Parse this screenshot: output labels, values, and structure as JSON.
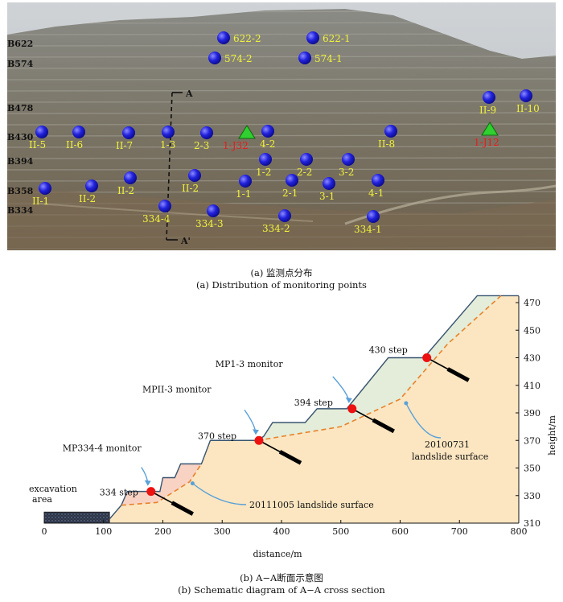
{
  "figure_a": {
    "caption_cn": "(a) 监测点分布",
    "caption_en": "(a) Distribution of monitoring points",
    "bench_labels": [
      "B622",
      "B574",
      "B478",
      "B430",
      "B394",
      "B358",
      "B334"
    ],
    "section_line": {
      "top_label": "A",
      "bottom_label": "A'"
    },
    "points": [
      {
        "label": "622-2",
        "kind": "point",
        "color": "blue"
      },
      {
        "label": "622-1",
        "kind": "point",
        "color": "blue"
      },
      {
        "label": "574-2",
        "kind": "point",
        "color": "blue"
      },
      {
        "label": "574-1",
        "kind": "point",
        "color": "blue"
      },
      {
        "label": "II-9",
        "kind": "point",
        "color": "blue"
      },
      {
        "label": "II-10",
        "kind": "point",
        "color": "blue"
      },
      {
        "label": "II-5",
        "kind": "point",
        "color": "blue"
      },
      {
        "label": "II-6",
        "kind": "point",
        "color": "blue"
      },
      {
        "label": "II-7",
        "kind": "point",
        "color": "blue"
      },
      {
        "label": "1-3",
        "kind": "point",
        "color": "blue"
      },
      {
        "label": "2-3",
        "kind": "point",
        "color": "blue"
      },
      {
        "label": "1-J32",
        "kind": "station",
        "color": "green",
        "label_color": "red"
      },
      {
        "label": "4-2",
        "kind": "point",
        "color": "blue"
      },
      {
        "label": "II-8",
        "kind": "point",
        "color": "blue"
      },
      {
        "label": "1-J12",
        "kind": "station",
        "color": "green",
        "label_color": "red"
      },
      {
        "label": "1-2",
        "kind": "point",
        "color": "blue"
      },
      {
        "label": "2-2",
        "kind": "point",
        "color": "blue"
      },
      {
        "label": "3-2",
        "kind": "point",
        "color": "blue"
      },
      {
        "label": "II-1",
        "kind": "point",
        "color": "blue"
      },
      {
        "label": "II-2",
        "kind": "point",
        "color": "blue"
      },
      {
        "label": "II-2",
        "kind": "point",
        "color": "blue"
      },
      {
        "label": "II-2",
        "kind": "point",
        "color": "blue"
      },
      {
        "label": "1-1",
        "kind": "point",
        "color": "blue"
      },
      {
        "label": "2-1",
        "kind": "point",
        "color": "blue"
      },
      {
        "label": "3-1",
        "kind": "point",
        "color": "blue"
      },
      {
        "label": "4-1",
        "kind": "point",
        "color": "blue"
      },
      {
        "label": "334-4",
        "kind": "point",
        "color": "blue"
      },
      {
        "label": "334-3",
        "kind": "point",
        "color": "blue"
      },
      {
        "label": "334-2",
        "kind": "point",
        "color": "blue"
      },
      {
        "label": "334-1",
        "kind": "point",
        "color": "blue"
      }
    ]
  },
  "figure_b": {
    "caption_cn": "(b) A−A断面示意图",
    "caption_en": "(b) Schematic diagram of A−A cross section",
    "chart_data": {
      "type": "diagram",
      "xlabel": "distance/m",
      "ylabel": "height/m",
      "xlim": [
        0,
        800
      ],
      "ylim": [
        310,
        470
      ],
      "xticks": [
        0,
        100,
        200,
        300,
        400,
        500,
        600,
        700,
        800
      ],
      "yticks": [
        310,
        330,
        350,
        370,
        390,
        410,
        430,
        450,
        470
      ],
      "slope_profile": [
        [
          0,
          313
        ],
        [
          110,
          313
        ],
        [
          130,
          323
        ],
        [
          140,
          333
        ],
        [
          180,
          333
        ],
        [
          195,
          333
        ],
        [
          200,
          343
        ],
        [
          220,
          343
        ],
        [
          230,
          353
        ],
        [
          265,
          353
        ],
        [
          280,
          370
        ],
        [
          360,
          370
        ],
        [
          370,
          373
        ],
        [
          385,
          383
        ],
        [
          440,
          383
        ],
        [
          460,
          393
        ],
        [
          510,
          393
        ],
        [
          580,
          430
        ],
        [
          640,
          430
        ],
        [
          730,
          475
        ],
        [
          800,
          475
        ]
      ],
      "surfaces": [
        {
          "name": "20100731 landslide surface",
          "points": [
            [
              360,
              370
            ],
            [
              500,
              380
            ],
            [
              600,
              400
            ],
            [
              680,
              440
            ],
            [
              770,
              475
            ]
          ]
        },
        {
          "name": "20111005 landslide surface",
          "points": [
            [
              130,
              323
            ],
            [
              190,
              325
            ],
            [
              245,
              340
            ],
            [
              265,
              353
            ]
          ]
        }
      ],
      "monitors": [
        {
          "label": "MP334-4 monitor",
          "step": "334 step",
          "x": 180,
          "y": 333
        },
        {
          "label": "MPII-3 monitor",
          "step": "370 step",
          "x": 362,
          "y": 370
        },
        {
          "label": "MP1-3 monitor",
          "step": "394 step",
          "x": 519,
          "y": 393
        },
        {
          "label": "",
          "step": "430 step",
          "x": 645,
          "y": 430
        }
      ],
      "annotations": {
        "excavation_line1": "excavation",
        "excavation_line2": "area",
        "surface_2010_line1": "20100731",
        "surface_2010_line2": "landslide surface",
        "surface_2011": "20111005 landslide surface"
      }
    }
  }
}
